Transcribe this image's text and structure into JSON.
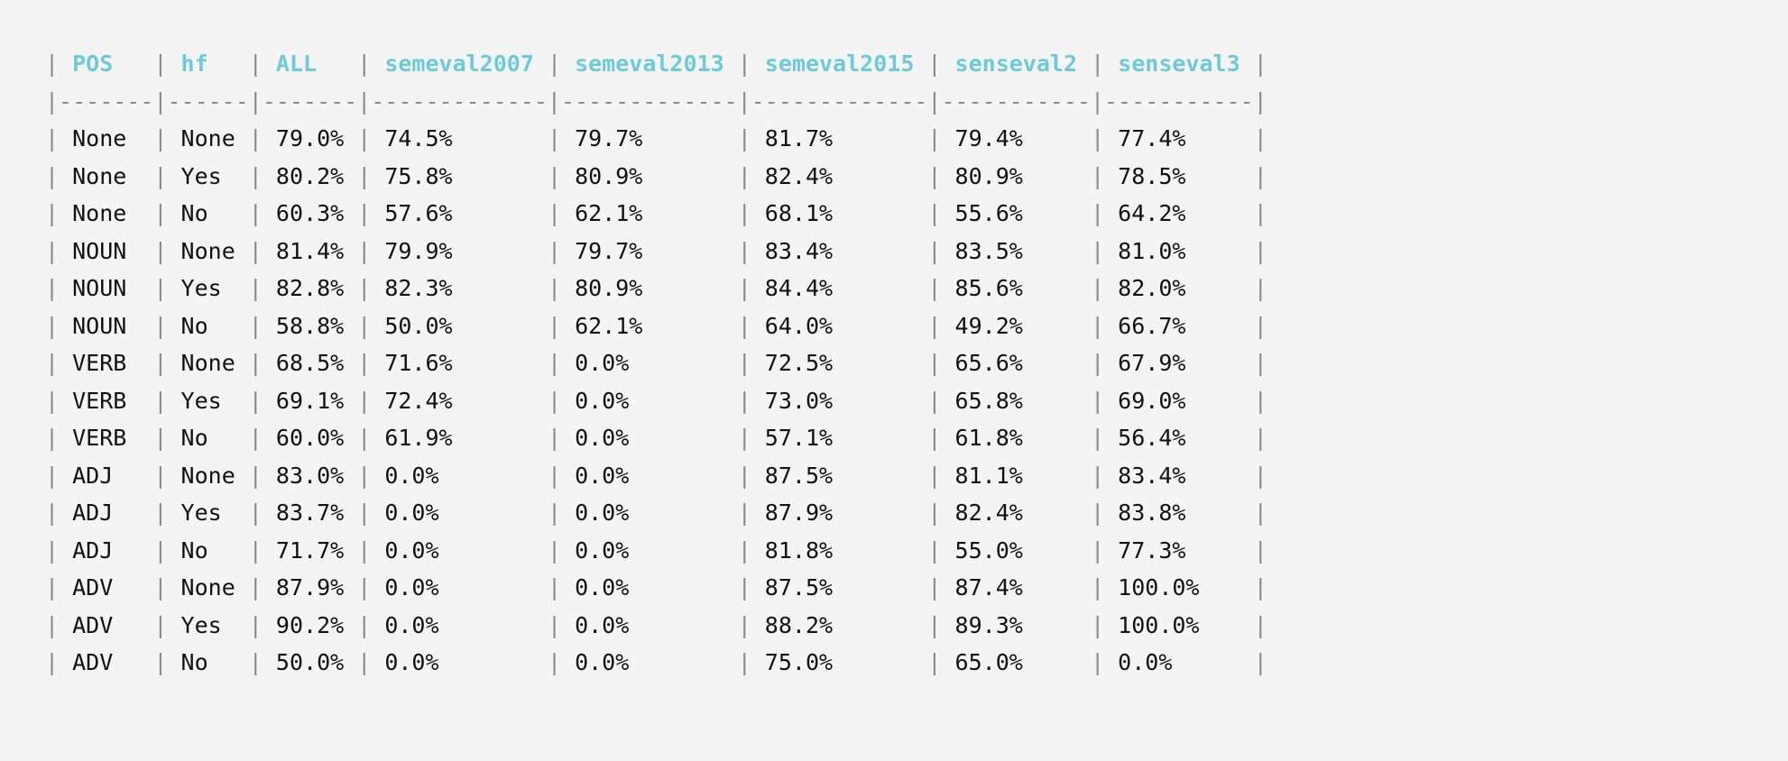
{
  "table": {
    "columns": [
      {
        "label": "POS",
        "width": 7
      },
      {
        "label": "hf",
        "width": 6
      },
      {
        "label": "ALL",
        "width": 7
      },
      {
        "label": "semeval2007",
        "width": 13
      },
      {
        "label": "semeval2013",
        "width": 13
      },
      {
        "label": "semeval2015",
        "width": 13
      },
      {
        "label": "senseval2",
        "width": 11
      },
      {
        "label": "senseval3",
        "width": 11
      }
    ],
    "rows": [
      [
        "None",
        "None",
        "79.0%",
        "74.5%",
        "79.7%",
        "81.7%",
        "79.4%",
        "77.4%"
      ],
      [
        "None",
        "Yes",
        "80.2%",
        "75.8%",
        "80.9%",
        "82.4%",
        "80.9%",
        "78.5%"
      ],
      [
        "None",
        "No",
        "60.3%",
        "57.6%",
        "62.1%",
        "68.1%",
        "55.6%",
        "64.2%"
      ],
      [
        "NOUN",
        "None",
        "81.4%",
        "79.9%",
        "79.7%",
        "83.4%",
        "83.5%",
        "81.0%"
      ],
      [
        "NOUN",
        "Yes",
        "82.8%",
        "82.3%",
        "80.9%",
        "84.4%",
        "85.6%",
        "82.0%"
      ],
      [
        "NOUN",
        "No",
        "58.8%",
        "50.0%",
        "62.1%",
        "64.0%",
        "49.2%",
        "66.7%"
      ],
      [
        "VERB",
        "None",
        "68.5%",
        "71.6%",
        "0.0%",
        "72.5%",
        "65.6%",
        "67.9%"
      ],
      [
        "VERB",
        "Yes",
        "69.1%",
        "72.4%",
        "0.0%",
        "73.0%",
        "65.8%",
        "69.0%"
      ],
      [
        "VERB",
        "No",
        "60.0%",
        "61.9%",
        "0.0%",
        "57.1%",
        "61.8%",
        "56.4%"
      ],
      [
        "ADJ",
        "None",
        "83.0%",
        "0.0%",
        "0.0%",
        "87.5%",
        "81.1%",
        "83.4%"
      ],
      [
        "ADJ",
        "Yes",
        "83.7%",
        "0.0%",
        "0.0%",
        "87.9%",
        "82.4%",
        "83.8%"
      ],
      [
        "ADJ",
        "No",
        "71.7%",
        "0.0%",
        "0.0%",
        "81.8%",
        "55.0%",
        "77.3%"
      ],
      [
        "ADV",
        "None",
        "87.9%",
        "0.0%",
        "0.0%",
        "87.5%",
        "87.4%",
        "100.0%"
      ],
      [
        "ADV",
        "Yes",
        "90.2%",
        "0.0%",
        "0.0%",
        "88.2%",
        "89.3%",
        "100.0%"
      ],
      [
        "ADV",
        "No",
        "50.0%",
        "0.0%",
        "0.0%",
        "75.0%",
        "65.0%",
        "0.0%"
      ]
    ]
  },
  "colors": {
    "background": "#f4f4f4",
    "header": "#6ccbd6",
    "text": "#111111",
    "border": "#8a8a8a"
  }
}
